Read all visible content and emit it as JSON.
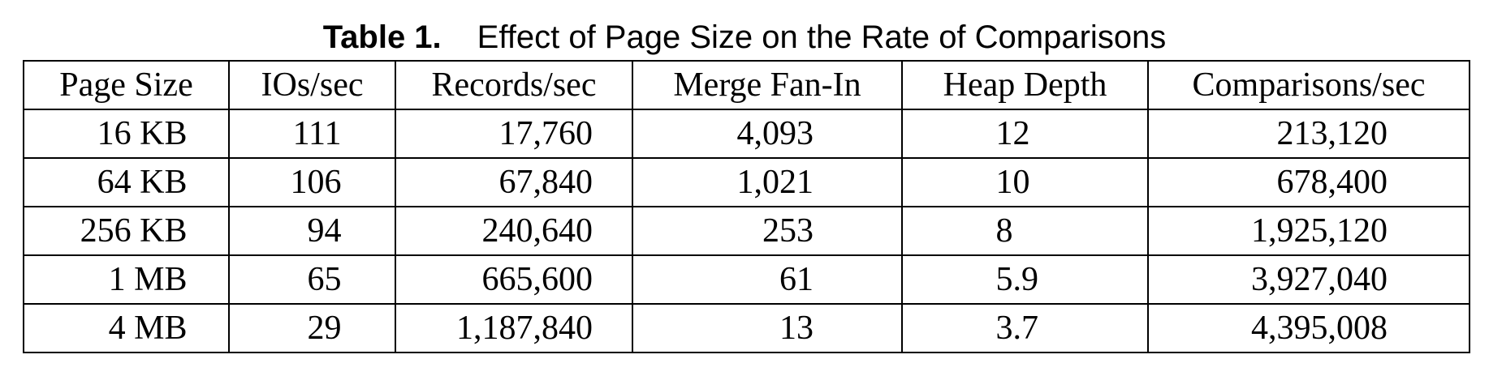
{
  "caption": {
    "label": "Table 1.",
    "title": "Effect of Page Size on the Rate of Comparisons"
  },
  "table": {
    "headers": [
      "Page Size",
      "IOs/sec",
      "Records/sec",
      "Merge Fan-In",
      "Heap Depth",
      "Comparisons/sec"
    ],
    "rows": [
      [
        "16 KB",
        "111",
        "17,760",
        "4,093",
        "12",
        "213,120"
      ],
      [
        "64 KB",
        "106",
        "67,840",
        "1,021",
        "10",
        "678,400"
      ],
      [
        "256 KB",
        "94",
        "240,640",
        "253",
        "8",
        "1,925,120"
      ],
      [
        "1 MB",
        "65",
        "665,600",
        "61",
        "5.9",
        "3,927,040"
      ],
      [
        "4 MB",
        "29",
        "1,187,840",
        "13",
        "3.7",
        "4,395,008"
      ]
    ]
  }
}
